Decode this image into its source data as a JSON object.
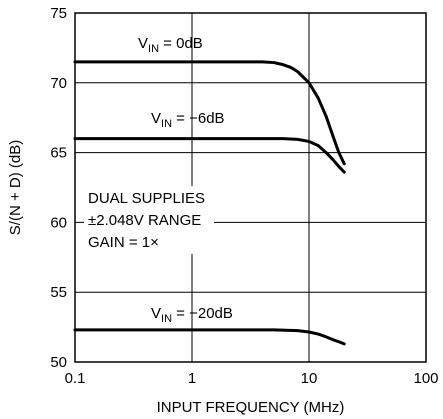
{
  "chart_data": {
    "type": "line",
    "xlabel": "INPUT FREQUENCY (MHz)",
    "ylabel": "S/(N + D) (dB)",
    "x_scale": "log",
    "xlim": [
      0.1,
      100
    ],
    "ylim": [
      50,
      75
    ],
    "x_ticks": [
      "0.1",
      "1",
      "10",
      "100"
    ],
    "y_ticks": [
      "50",
      "55",
      "60",
      "65",
      "70",
      "75"
    ],
    "grid": true,
    "annotation": [
      "DUAL SUPPLIES",
      "±2.048V RANGE",
      "GAIN = 1×"
    ],
    "series": [
      {
        "name": "VIN = 0dB",
        "label_main": "V",
        "label_sub": "IN",
        "label_rest": " = 0dB",
        "x": [
          0.1,
          0.5,
          1,
          2,
          4,
          5,
          6,
          7,
          8,
          10,
          12,
          14,
          16,
          18,
          20
        ],
        "y": [
          71.5,
          71.5,
          71.5,
          71.5,
          71.5,
          71.45,
          71.3,
          71.1,
          70.8,
          70.0,
          68.9,
          67.6,
          66.2,
          65.0,
          64.2
        ]
      },
      {
        "name": "VIN = -6dB",
        "label_main": "V",
        "label_sub": "IN",
        "label_rest": " = −6dB",
        "x": [
          0.1,
          0.5,
          1,
          2,
          4,
          6,
          8,
          10,
          12,
          14,
          16,
          18,
          20
        ],
        "y": [
          66.0,
          66.0,
          66.0,
          66.0,
          66.0,
          66.0,
          65.95,
          65.8,
          65.5,
          65.0,
          64.5,
          64.0,
          63.6
        ]
      },
      {
        "name": "VIN = -20dB",
        "label_main": "V",
        "label_sub": "IN",
        "label_rest": " = −20dB",
        "x": [
          0.1,
          0.5,
          1,
          2,
          5,
          8,
          10,
          12,
          14,
          16,
          18,
          20
        ],
        "y": [
          52.3,
          52.3,
          52.3,
          52.3,
          52.3,
          52.25,
          52.15,
          52.0,
          51.8,
          51.6,
          51.45,
          51.3
        ]
      }
    ]
  }
}
